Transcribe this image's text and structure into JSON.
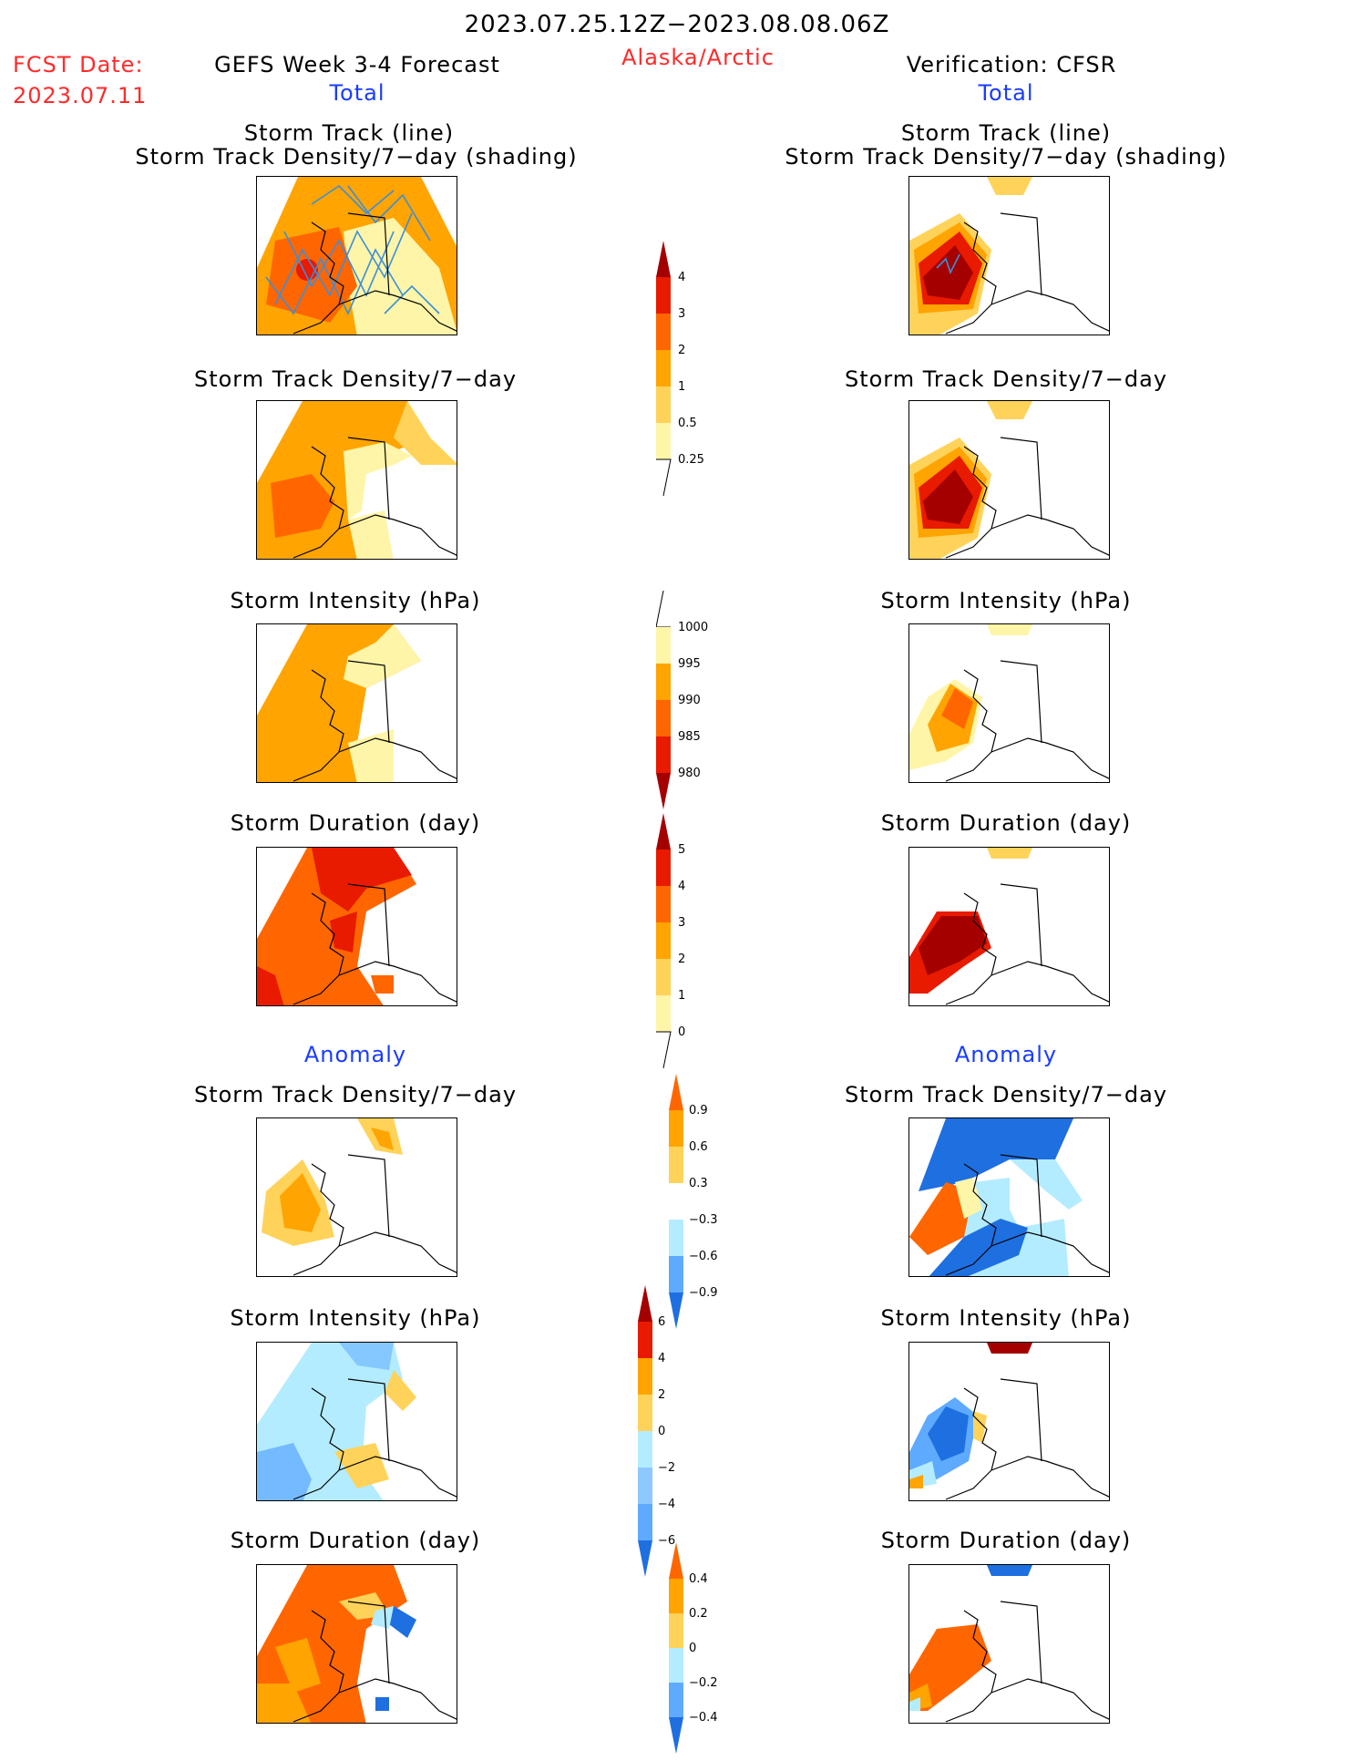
{
  "header": {
    "period": "2023.07.25.12Z−2023.08.08.06Z",
    "fcst_date_label": "FCST Date:",
    "fcst_date": "2023.07.11",
    "left_title": "GEFS Week 3-4 Forecast",
    "region": "Alaska/Arctic",
    "right_title": "Verification: CFSR",
    "left_subtitle": "Total",
    "right_subtitle": "Total",
    "left_anomaly": "Anomaly",
    "right_anomaly": "Anomaly"
  },
  "panels": {
    "track_line": "Storm Track (line)",
    "track_density_shading": "Storm Track Density/7−day (shading)",
    "track_density": "Storm Track Density/7−day",
    "intensity": "Storm Intensity (hPa)",
    "duration": "Storm Duration (day)"
  },
  "colorbars": {
    "density_total": [
      "4",
      "3",
      "2",
      "1",
      "0.5",
      "0.25"
    ],
    "intensity_total": [
      "1000",
      "995",
      "990",
      "985",
      "980"
    ],
    "duration_total": [
      "5",
      "4",
      "3",
      "2",
      "1",
      "0"
    ],
    "density_anom": [
      "0.9",
      "0.6",
      "0.3",
      "−0.3",
      "−0.6",
      "−0.9"
    ],
    "intensity_anom": [
      "6",
      "4",
      "2",
      "0",
      "−2",
      "−4",
      "−6"
    ],
    "duration_anom": [
      "0.4",
      "0.2",
      "0",
      "−0.2",
      "−0.4"
    ]
  },
  "colors": {
    "pale_yellow": "#fff5a8",
    "light_orange": "#ffd35a",
    "orange": "#ffa400",
    "dark_orange": "#ff6600",
    "red": "#e81a00",
    "dark_red": "#a50000",
    "light_blue": "#b4ecff",
    "mid_blue": "#5eaaff",
    "blue": "#1e6fe0",
    "track_line": "#3a8fdc"
  }
}
